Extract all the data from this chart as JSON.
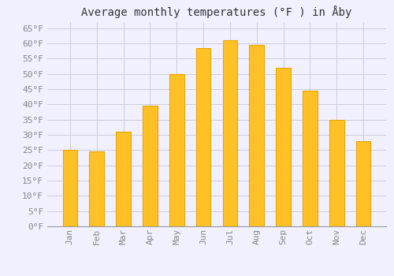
{
  "title": "Average monthly temperatures (°F ) in Åby",
  "months": [
    "Jan",
    "Feb",
    "Mar",
    "Apr",
    "May",
    "Jun",
    "Jul",
    "Aug",
    "Sep",
    "Oct",
    "Nov",
    "Dec"
  ],
  "values": [
    25,
    24.5,
    31,
    39.5,
    50,
    58.5,
    61,
    59.5,
    52,
    44.5,
    35,
    28
  ],
  "bar_color": "#FFC125",
  "bar_edge_color": "#E8A800",
  "background_color": "#F0F0FF",
  "grid_color": "#CCCCDD",
  "ylim": [
    0,
    67
  ],
  "yticks": [
    0,
    5,
    10,
    15,
    20,
    25,
    30,
    35,
    40,
    45,
    50,
    55,
    60,
    65
  ],
  "ytick_labels": [
    "0°F",
    "5°F",
    "10°F",
    "15°F",
    "20°F",
    "25°F",
    "30°F",
    "35°F",
    "40°F",
    "45°F",
    "50°F",
    "55°F",
    "60°F",
    "65°F"
  ],
  "tick_color": "#888888",
  "title_fontsize": 10,
  "tick_fontsize": 8,
  "font_family": "monospace",
  "bar_width": 0.55
}
